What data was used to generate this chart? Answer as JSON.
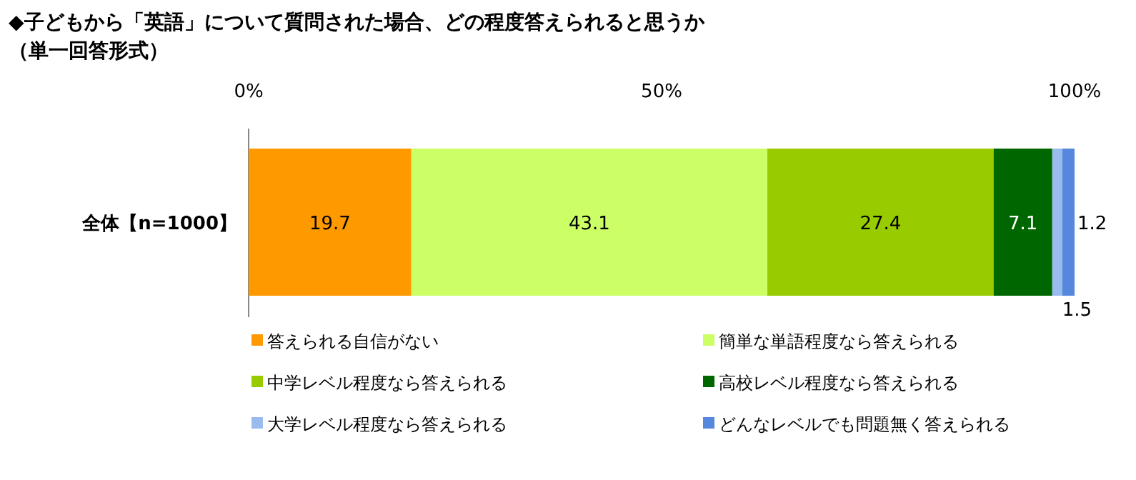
{
  "chart_data": {
    "type": "bar",
    "orientation": "horizontal",
    "stacked": true,
    "title": "◆子どもから「英語」について質問された場合、どの程度答えられると思うか",
    "subtitle": "（単一回答形式）",
    "categories": [
      "全体【n=1000】"
    ],
    "series": [
      {
        "name": "答えられる自信がない",
        "color": "#ff9900",
        "values": [
          19.7
        ]
      },
      {
        "name": "簡単な単語程度なら答えられる",
        "color": "#ccff66",
        "values": [
          43.1
        ]
      },
      {
        "name": "中学レベル程度なら答えられる",
        "color": "#99cc00",
        "values": [
          27.4
        ]
      },
      {
        "name": "高校レベル程度なら答えられる",
        "color": "#006600",
        "values": [
          7.1
        ]
      },
      {
        "name": "大学レベル程度なら答えられる",
        "color": "#99bbee",
        "values": [
          1.2
        ]
      },
      {
        "name": "どんなレベルでも問題無く答えられる",
        "color": "#5588dd",
        "values": [
          1.5
        ]
      }
    ],
    "xlim": [
      0,
      100
    ],
    "xticks": [
      {
        "value": 0,
        "label": "0%"
      },
      {
        "value": 50,
        "label": "50%"
      },
      {
        "value": 100,
        "label": "100%"
      }
    ],
    "data_labels": true,
    "legend": "bottom",
    "grid": false
  }
}
